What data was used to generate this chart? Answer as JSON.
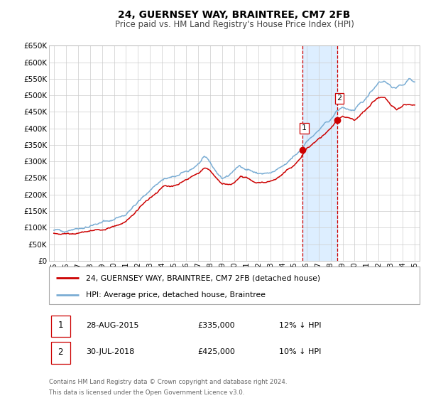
{
  "title": "24, GUERNSEY WAY, BRAINTREE, CM7 2FB",
  "subtitle": "Price paid vs. HM Land Registry's House Price Index (HPI)",
  "background_color": "#ffffff",
  "plot_bg_color": "#ffffff",
  "grid_color": "#cccccc",
  "hpi_color": "#7aadd4",
  "price_color": "#cc0000",
  "marker_color": "#cc0000",
  "shade_color": "#ddeeff",
  "vline_color": "#cc0000",
  "ylim": [
    0,
    650000
  ],
  "yticks": [
    0,
    50000,
    100000,
    150000,
    200000,
    250000,
    300000,
    350000,
    400000,
    450000,
    500000,
    550000,
    600000,
    650000
  ],
  "ytick_labels": [
    "£0",
    "£50K",
    "£100K",
    "£150K",
    "£200K",
    "£250K",
    "£300K",
    "£350K",
    "£400K",
    "£450K",
    "£500K",
    "£550K",
    "£600K",
    "£650K"
  ],
  "xlim_start": 1994.6,
  "xlim_end": 2025.4,
  "sale1_x": 2015.66,
  "sale1_y": 335000,
  "sale1_label": "1",
  "sale2_x": 2018.58,
  "sale2_y": 425000,
  "sale2_label": "2",
  "legend_line1": "24, GUERNSEY WAY, BRAINTREE, CM7 2FB (detached house)",
  "legend_line2": "HPI: Average price, detached house, Braintree",
  "table_row1": [
    "1",
    "28-AUG-2015",
    "£335,000",
    "12% ↓ HPI"
  ],
  "table_row2": [
    "2",
    "30-JUL-2018",
    "£425,000",
    "10% ↓ HPI"
  ],
  "footer1": "Contains HM Land Registry data © Crown copyright and database right 2024.",
  "footer2": "This data is licensed under the Open Government Licence v3.0."
}
